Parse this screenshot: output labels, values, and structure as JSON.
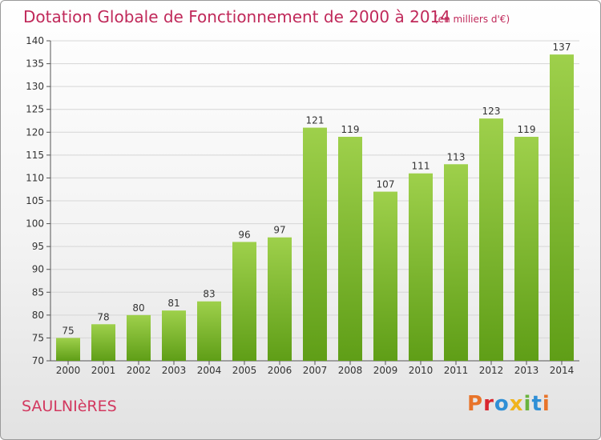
{
  "title": "Dotation Globale de Fonctionnement de 2000 à 2014",
  "subtitle": "(en milliers d'€)",
  "commune": "SAULNIèRES",
  "brand": "Proxiti",
  "colors": {
    "title": "#c0295a",
    "bar_top": "#9ed04b",
    "bar_bottom": "#5f9e17",
    "brand_letters": [
      "#e8742a",
      "#d9262f",
      "#2f8fd6",
      "#f0b41c",
      "#6ab43e",
      "#2f8fd6",
      "#e8742a"
    ]
  },
  "chart_data": {
    "type": "bar",
    "title": "Dotation Globale de Fonctionnement de 2000 à 2014",
    "subtitle": "(en milliers d'€)",
    "categories": [
      "2000",
      "2001",
      "2002",
      "2003",
      "2004",
      "2005",
      "2006",
      "2007",
      "2008",
      "2009",
      "2010",
      "2011",
      "2012",
      "2013",
      "2014"
    ],
    "values": [
      75,
      78,
      80,
      81,
      83,
      96,
      97,
      121,
      119,
      107,
      111,
      113,
      123,
      119,
      137
    ],
    "ylim": [
      70,
      140
    ],
    "yticks": [
      70,
      75,
      80,
      85,
      90,
      95,
      100,
      105,
      110,
      115,
      120,
      125,
      130,
      135,
      140
    ],
    "grid": true,
    "data_labels": true
  }
}
